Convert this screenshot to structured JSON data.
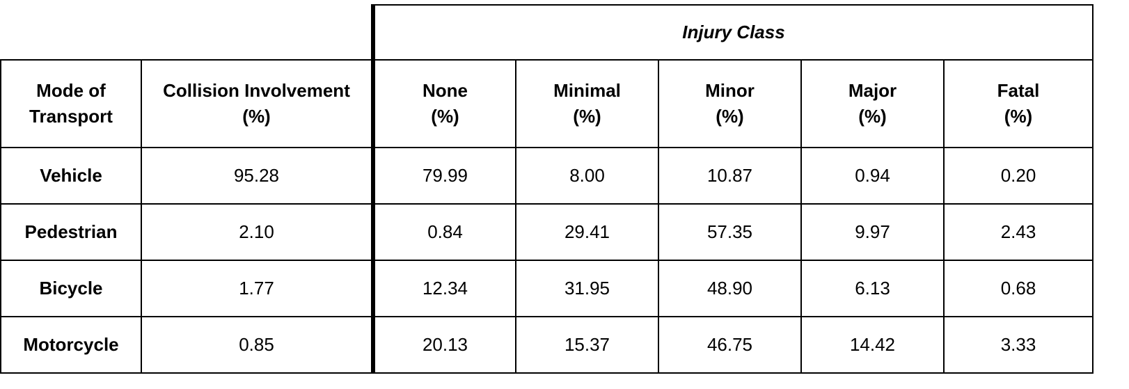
{
  "table": {
    "group_header": "Injury Class",
    "columns": [
      {
        "key": "mode",
        "lines": [
          "Mode of",
          "Transport"
        ]
      },
      {
        "key": "collision",
        "lines": [
          "Collision Involvement",
          "(%)"
        ]
      },
      {
        "key": "none",
        "lines": [
          "None",
          "(%)"
        ]
      },
      {
        "key": "minimal",
        "lines": [
          "Minimal",
          "(%)"
        ]
      },
      {
        "key": "minor",
        "lines": [
          "Minor",
          "(%)"
        ]
      },
      {
        "key": "major",
        "lines": [
          "Major",
          "(%)"
        ]
      },
      {
        "key": "fatal",
        "lines": [
          "Fatal",
          "(%)"
        ]
      }
    ],
    "rows": [
      {
        "mode": "Vehicle",
        "collision": "95.28",
        "none": "79.99",
        "minimal": "8.00",
        "minor": "10.87",
        "major": "0.94",
        "fatal": "0.20"
      },
      {
        "mode": "Pedestrian",
        "collision": "2.10",
        "none": "0.84",
        "minimal": "29.41",
        "minor": "57.35",
        "major": "9.97",
        "fatal": "2.43"
      },
      {
        "mode": "Bicycle",
        "collision": "1.77",
        "none": "12.34",
        "minimal": "31.95",
        "minor": "48.90",
        "major": "6.13",
        "fatal": "0.68"
      },
      {
        "mode": "Motorcycle",
        "collision": "0.85",
        "none": "20.13",
        "minimal": "15.37",
        "minor": "46.75",
        "major": "14.42",
        "fatal": "3.33"
      }
    ]
  }
}
